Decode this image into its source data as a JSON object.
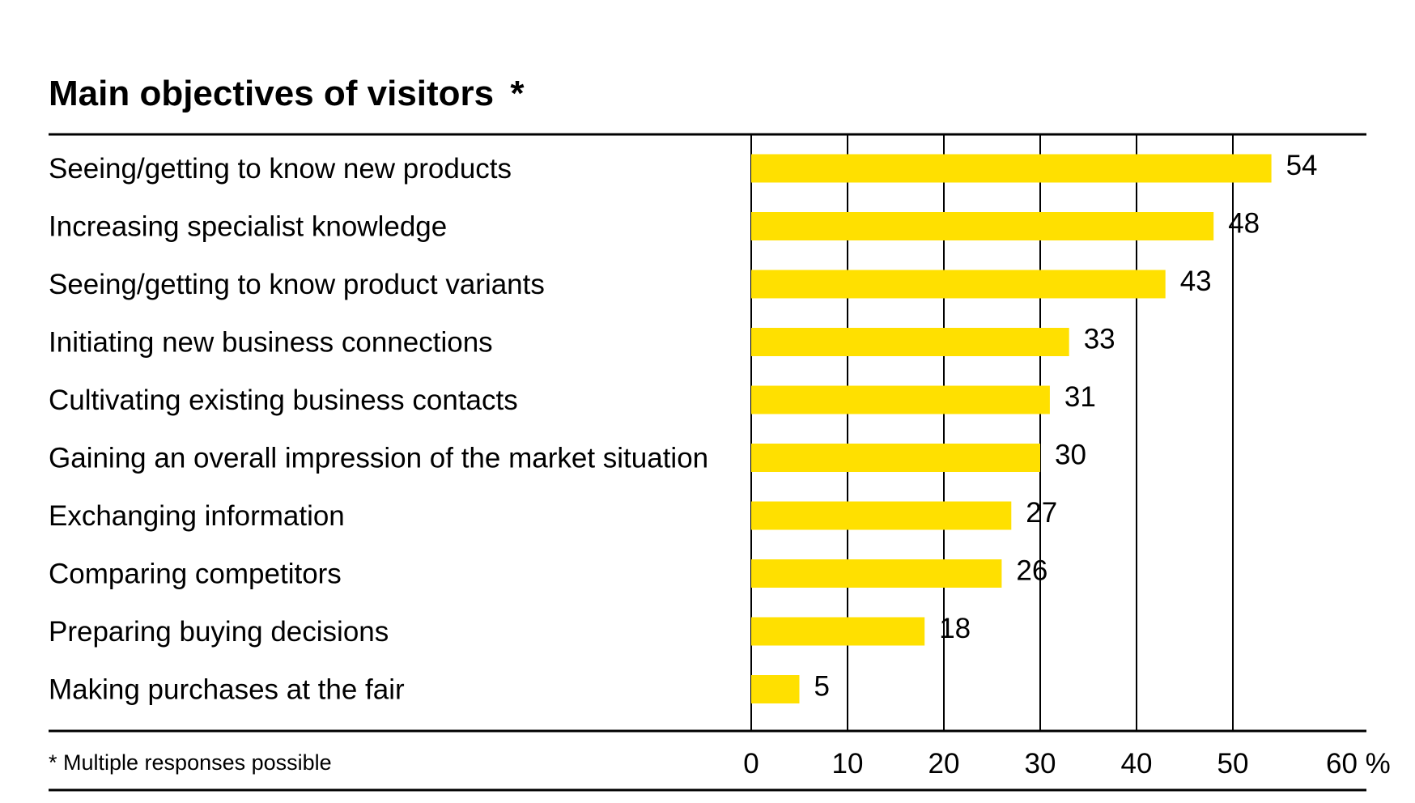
{
  "chart_data": {
    "type": "bar",
    "orientation": "horizontal",
    "title": "Main objectives of visitors",
    "title_mark": "*",
    "categories": [
      "Seeing/getting to know new products",
      "Increasing specialist knowledge",
      "Seeing/getting to know product variants",
      "Initiating new business connections",
      "Cultivating existing business contacts",
      "Gaining an overall impression of the market situation",
      "Exchanging information",
      "Comparing competitors",
      "Preparing buying decisions",
      "Making purchases at the fair"
    ],
    "values": [
      54,
      48,
      43,
      33,
      31,
      30,
      27,
      26,
      18,
      5
    ],
    "xlim": [
      0,
      60
    ],
    "x_ticks": [
      "0",
      "10",
      "20",
      "30",
      "40",
      "50",
      "60 %"
    ],
    "footnote": "* Multiple responses possible",
    "grid": true,
    "bar_color": "#FFE000"
  }
}
